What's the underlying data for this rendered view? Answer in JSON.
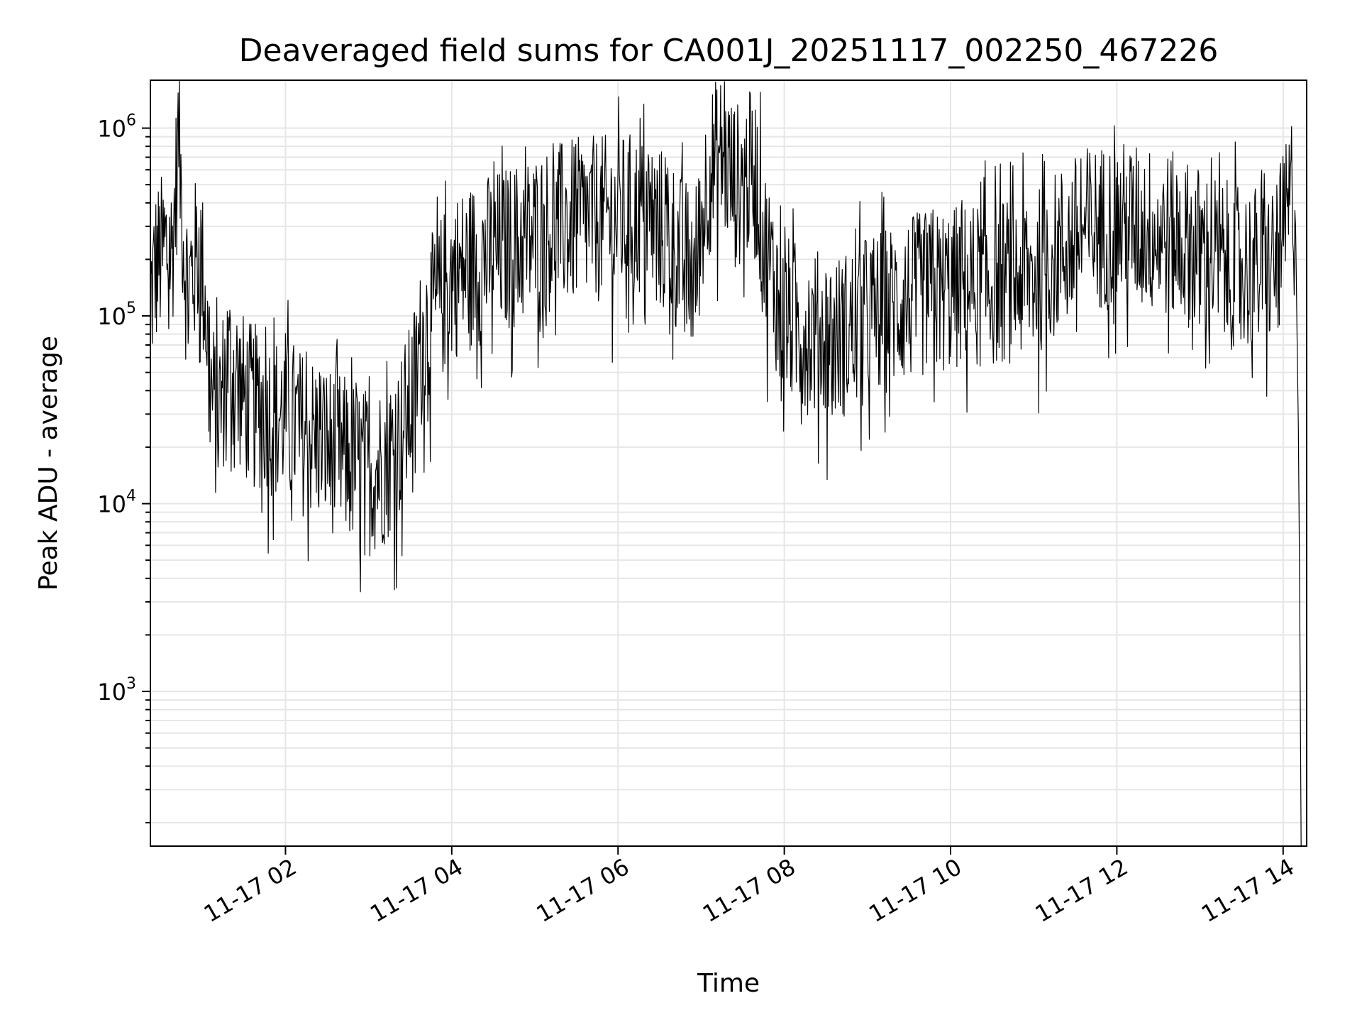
{
  "chart_data": {
    "type": "line",
    "title": "Deaveraged field sums for CA001J_20251117_002250_467226",
    "xlabel": "Time",
    "ylabel": "Peak ADU - average",
    "yscale": "log",
    "ylim": [
      150,
      1800000
    ],
    "xlim": [
      "2025-11-17T00:22:30",
      "2025-11-17T14:17:00"
    ],
    "grid": true,
    "line_color": "#000000",
    "x_ticks": [
      {
        "t": "2025-11-17T02:00:00",
        "label": "11-17 02"
      },
      {
        "t": "2025-11-17T04:00:00",
        "label": "11-17 04"
      },
      {
        "t": "2025-11-17T06:00:00",
        "label": "11-17 06"
      },
      {
        "t": "2025-11-17T08:00:00",
        "label": "11-17 08"
      },
      {
        "t": "2025-11-17T10:00:00",
        "label": "11-17 10"
      },
      {
        "t": "2025-11-17T12:00:00",
        "label": "11-17 12"
      },
      {
        "t": "2025-11-17T14:00:00",
        "label": "11-17 14"
      }
    ],
    "y_ticks": [
      {
        "value": 1000,
        "base": "10",
        "exp": "3"
      },
      {
        "value": 10000,
        "base": "10",
        "exp": "4"
      },
      {
        "value": 100000,
        "base": "10",
        "exp": "5"
      },
      {
        "value": 1000000,
        "base": "10",
        "exp": "6"
      }
    ],
    "series": [
      {
        "x": [
          "2025-11-17T00:22:30",
          "2025-11-17T00:26:00",
          "2025-11-17T00:30:00",
          "2025-11-17T00:34:00",
          "2025-11-17T00:38:00",
          "2025-11-17T00:41:00",
          "2025-11-17T00:43:00",
          "2025-11-17T00:45:00",
          "2025-11-17T00:48:00",
          "2025-11-17T00:51:00",
          "2025-11-17T00:54:00",
          "2025-11-17T00:58:00",
          "2025-11-17T01:02:00",
          "2025-11-17T01:06:00",
          "2025-11-17T01:10:00",
          "2025-11-17T01:14:00",
          "2025-11-17T01:18:00",
          "2025-11-17T01:24:00",
          "2025-11-17T01:30:00",
          "2025-11-17T01:36:00",
          "2025-11-17T01:42:00",
          "2025-11-17T01:48:00",
          "2025-11-17T01:54:00",
          "2025-11-17T02:00:00",
          "2025-11-17T02:10:00",
          "2025-11-17T02:20:00",
          "2025-11-17T02:30:00",
          "2025-11-17T02:40:00",
          "2025-11-17T02:50:00",
          "2025-11-17T03:00:00",
          "2025-11-17T03:10:00",
          "2025-11-17T03:20:00",
          "2025-11-17T03:30:00",
          "2025-11-17T03:40:00",
          "2025-11-17T03:50:00",
          "2025-11-17T04:00:00",
          "2025-11-17T04:15:00",
          "2025-11-17T04:30:00",
          "2025-11-17T04:45:00",
          "2025-11-17T05:00:00",
          "2025-11-17T05:20:00",
          "2025-11-17T05:40:00",
          "2025-11-17T06:00:00",
          "2025-11-17T06:20:00",
          "2025-11-17T06:40:00",
          "2025-11-17T06:55:00",
          "2025-11-17T07:05:00",
          "2025-11-17T07:15:00",
          "2025-11-17T07:25:00",
          "2025-11-17T07:35:00",
          "2025-11-17T07:40:00",
          "2025-11-17T07:45:00",
          "2025-11-17T08:00:00",
          "2025-11-17T08:20:00",
          "2025-11-17T08:40:00",
          "2025-11-17T09:00:00",
          "2025-11-17T09:20:00",
          "2025-11-17T09:40:00",
          "2025-11-17T10:00:00",
          "2025-11-17T10:20:00",
          "2025-11-17T10:40:00",
          "2025-11-17T11:00:00",
          "2025-11-17T11:20:00",
          "2025-11-17T11:40:00",
          "2025-11-17T12:00:00",
          "2025-11-17T12:20:00",
          "2025-11-17T12:40:00",
          "2025-11-17T13:00:00",
          "2025-11-17T13:20:00",
          "2025-11-17T13:40:00",
          "2025-11-17T13:55:00",
          "2025-11-17T14:03:00",
          "2025-11-17T14:07:00",
          "2025-11-17T14:09:00",
          "2025-11-17T14:11:00",
          "2025-11-17T14:12:00",
          "2025-11-17T14:13:00"
        ],
        "y": [
          150000,
          220000,
          250000,
          280000,
          260000,
          600000,
          1200000,
          500000,
          200000,
          180000,
          220000,
          300000,
          150000,
          50000,
          35000,
          45000,
          70000,
          60000,
          45000,
          40000,
          40000,
          38000,
          35000,
          38000,
          30000,
          28000,
          25000,
          22000,
          20000,
          18000,
          20000,
          25000,
          40000,
          100000,
          140000,
          200000,
          230000,
          260000,
          290000,
          330000,
          380000,
          400000,
          410000,
          430000,
          300000,
          200000,
          700000,
          900000,
          600000,
          700000,
          650000,
          300000,
          120000,
          100000,
          95000,
          120000,
          140000,
          160000,
          170000,
          180000,
          190000,
          200000,
          280000,
          360000,
          380000,
          360000,
          330000,
          280000,
          230000,
          220000,
          230000,
          400000,
          600000,
          300000,
          25000,
          3000,
          150
        ]
      }
    ]
  }
}
